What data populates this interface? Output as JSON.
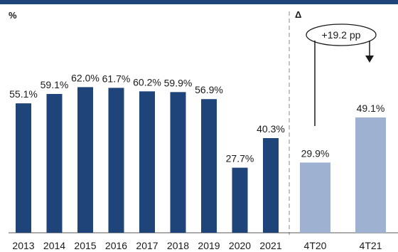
{
  "chart_data": {
    "type": "bar",
    "unit_label": "%",
    "delta_label": "Δ",
    "ylim": [
      0,
      70
    ],
    "annual": {
      "categories": [
        "2013",
        "2014",
        "2015",
        "2016",
        "2017",
        "2018",
        "2019",
        "2020",
        "2021"
      ],
      "values": [
        55.1,
        59.1,
        62.0,
        61.7,
        60.2,
        59.9,
        56.9,
        27.7,
        40.3
      ],
      "labels": [
        "55.1%",
        "59.1%",
        "62.0%",
        "61.7%",
        "60.2%",
        "59.9%",
        "56.9%",
        "27.7%",
        "40.3%"
      ],
      "color": "#1f4479"
    },
    "quarterly": {
      "categories": [
        "4T20",
        "4T21"
      ],
      "values": [
        29.9,
        49.1
      ],
      "labels": [
        "29.9%",
        "49.1%"
      ],
      "color": "#9fb1d1"
    },
    "annotation": {
      "text": "+19.2 pp"
    },
    "header_color": "#1f4479"
  }
}
